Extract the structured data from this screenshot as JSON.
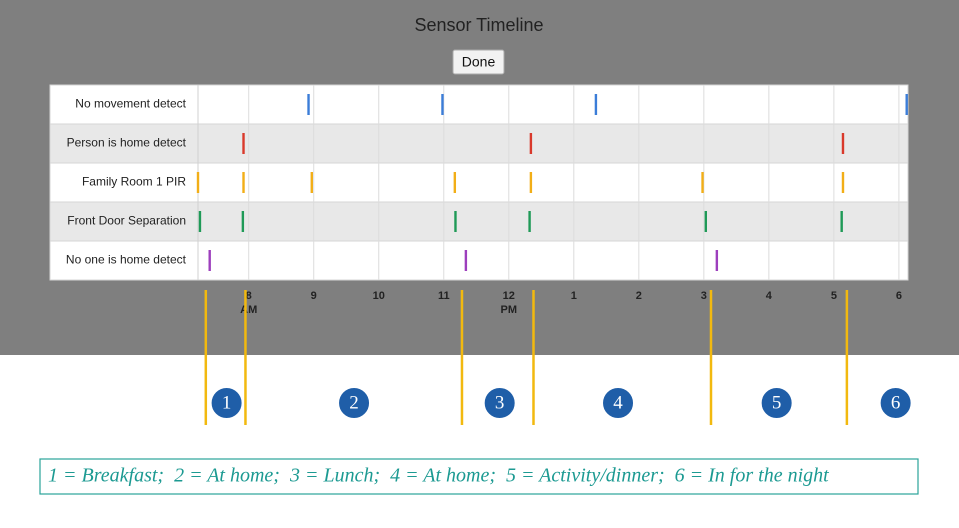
{
  "chart_data": {
    "type": "timeline",
    "title": "Sensor Timeline",
    "button": "Done",
    "xlim": [
      7.22,
      18.14
    ],
    "xticks": [
      {
        "value": 8,
        "label": "8",
        "period": "AM"
      },
      9,
      10,
      11,
      {
        "value": 12,
        "label": "12",
        "period": "PM"
      },
      {
        "value": 13,
        "label": "1"
      },
      {
        "value": 14,
        "label": "2"
      },
      {
        "value": 15,
        "label": "3"
      },
      {
        "value": 16,
        "label": "4"
      },
      {
        "value": 17,
        "label": "5"
      },
      {
        "value": 18,
        "label": "6"
      }
    ],
    "grid": true,
    "series": [
      {
        "name": "No movement detect",
        "color": "#3b7dd8",
        "values": [
          8.92,
          10.98,
          13.34,
          18.12
        ]
      },
      {
        "name": "Person is home detect",
        "color": "#d9392b",
        "values": [
          7.92,
          12.34,
          17.14
        ]
      },
      {
        "name": "Family Room 1 PIR",
        "color": "#f2ae17",
        "values": [
          7.22,
          7.92,
          8.97,
          11.17,
          12.34,
          14.98,
          17.14
        ]
      },
      {
        "name": "Front Door Separation",
        "color": "#1f9a57",
        "values": [
          7.25,
          7.91,
          11.18,
          12.32,
          15.03,
          17.12
        ]
      },
      {
        "name": "No one is home detect",
        "color": "#9d3fbd",
        "values": [
          7.4,
          11.34,
          15.2
        ]
      }
    ],
    "dividers": {
      "color": "#f2b90f",
      "values": [
        7.34,
        7.95,
        11.28,
        12.38,
        15.11,
        17.2
      ]
    },
    "periods": {
      "labels": [
        "1",
        "2",
        "3",
        "4",
        "5",
        "6"
      ],
      "positions": [
        7.66,
        9.62,
        11.86,
        13.68,
        16.12,
        17.95
      ]
    },
    "legend": "1 = Breakfast;  2 = At home;  3 = Lunch;  4 = At home;  5 = Activity/dinner;  6 = In for the night"
  }
}
